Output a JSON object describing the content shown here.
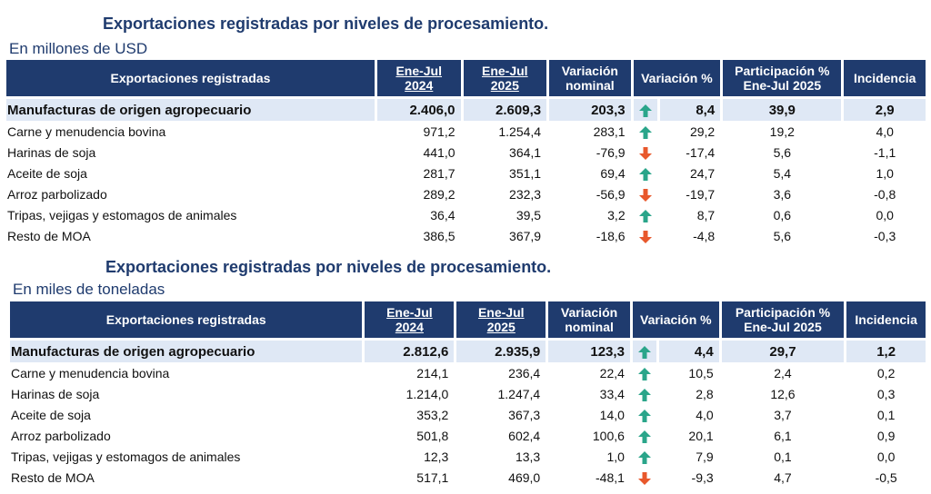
{
  "tables": [
    {
      "title": "Exportaciones registradas por niveles de procesamiento.",
      "subtitle": "En millones de USD",
      "headers": [
        "Exportaciones registradas",
        "Ene-Jul 2024",
        "Ene-Jul 2025",
        "Variación nominal",
        "Variación %",
        "Participación % Ene-Jul 2025",
        "Incidencia"
      ],
      "header_parts": {
        "h1_a": "Ene-Jul",
        "h1_b": "2024",
        "h2_a": "Ene-Jul",
        "h2_b": "2025",
        "h3_a": "Variación",
        "h3_b": "nominal",
        "h5_a": "Participación %",
        "h5_b": "Ene-Jul 2025"
      },
      "rows": [
        {
          "label": "Manufacturas de origen agropecuario",
          "v2024": "2.406,0",
          "v2025": "2.609,3",
          "var_nom": "203,3",
          "trend": "up",
          "var_pct": "8,4",
          "part": "39,9",
          "inc": "2,9",
          "total": true
        },
        {
          "label": "Carne y menudencia bovina",
          "v2024": "971,2",
          "v2025": "1.254,4",
          "var_nom": "283,1",
          "trend": "up",
          "var_pct": "29,2",
          "part": "19,2",
          "inc": "4,0"
        },
        {
          "label": "Harinas de soja",
          "v2024": "441,0",
          "v2025": "364,1",
          "var_nom": "-76,9",
          "trend": "down",
          "var_pct": "-17,4",
          "part": "5,6",
          "inc": "-1,1"
        },
        {
          "label": "Aceite de soja",
          "v2024": "281,7",
          "v2025": "351,1",
          "var_nom": "69,4",
          "trend": "up",
          "var_pct": "24,7",
          "part": "5,4",
          "inc": "1,0"
        },
        {
          "label": "Arroz parbolizado",
          "v2024": "289,2",
          "v2025": "232,3",
          "var_nom": "-56,9",
          "trend": "down",
          "var_pct": "-19,7",
          "part": "3,6",
          "inc": "-0,8"
        },
        {
          "label": "Tripas, vejigas y estomagos de animales",
          "v2024": "36,4",
          "v2025": "39,5",
          "var_nom": "3,2",
          "trend": "up",
          "var_pct": "8,7",
          "part": "0,6",
          "inc": "0,0"
        },
        {
          "label": "Resto de MOA",
          "v2024": "386,5",
          "v2025": "367,9",
          "var_nom": "-18,6",
          "trend": "down",
          "var_pct": "-4,8",
          "part": "5,6",
          "inc": "-0,3"
        }
      ]
    },
    {
      "title": "Exportaciones registradas por niveles de procesamiento.",
      "subtitle": "En miles de toneladas",
      "headers": [
        "Exportaciones registradas",
        "Ene-Jul 2024",
        "Ene-Jul 2025",
        "Variación nominal",
        "Variación %",
        "Participación % Ene-Jul 2025",
        "Incidencia"
      ],
      "header_parts": {
        "h1_a": "Ene-Jul",
        "h1_b": "2024",
        "h2_a": "Ene-Jul",
        "h2_b": "2025",
        "h3_a": "Variación",
        "h3_b": "nominal",
        "h5_a": "Participación %",
        "h5_b": "Ene-Jul 2025"
      },
      "rows": [
        {
          "label": "Manufacturas de origen agropecuario",
          "v2024": "2.812,6",
          "v2025": "2.935,9",
          "var_nom": "123,3",
          "trend": "up",
          "var_pct": "4,4",
          "part": "29,7",
          "inc": "1,2",
          "total": true
        },
        {
          "label": "Carne y menudencia bovina",
          "v2024": "214,1",
          "v2025": "236,4",
          "var_nom": "22,4",
          "trend": "up",
          "var_pct": "10,5",
          "part": "2,4",
          "inc": "0,2"
        },
        {
          "label": "Harinas de soja",
          "v2024": "1.214,0",
          "v2025": "1.247,4",
          "var_nom": "33,4",
          "trend": "up",
          "var_pct": "2,8",
          "part": "12,6",
          "inc": "0,3"
        },
        {
          "label": "Aceite de soja",
          "v2024": "353,2",
          "v2025": "367,3",
          "var_nom": "14,0",
          "trend": "up",
          "var_pct": "4,0",
          "part": "3,7",
          "inc": "0,1"
        },
        {
          "label": "Arroz parbolizado",
          "v2024": "501,8",
          "v2025": "602,4",
          "var_nom": "100,6",
          "trend": "up",
          "var_pct": "20,1",
          "part": "6,1",
          "inc": "0,9"
        },
        {
          "label": "Tripas, vejigas y estomagos de animales",
          "v2024": "12,3",
          "v2025": "13,3",
          "var_nom": "1,0",
          "trend": "up",
          "var_pct": "7,9",
          "part": "0,1",
          "inc": "0,0"
        },
        {
          "label": "Resto de MOA",
          "v2024": "517,1",
          "v2025": "469,0",
          "var_nom": "-48,1",
          "trend": "down",
          "var_pct": "-9,3",
          "part": "4,7",
          "inc": "-0,5"
        }
      ]
    }
  ],
  "colors": {
    "header_bg": "#1f3b6e",
    "total_bg": "#dfe8f5",
    "up_arrow": "#2aa58a",
    "down_arrow": "#e8582c"
  },
  "icons": {
    "up": "arrow-up-icon",
    "down": "arrow-down-icon"
  }
}
